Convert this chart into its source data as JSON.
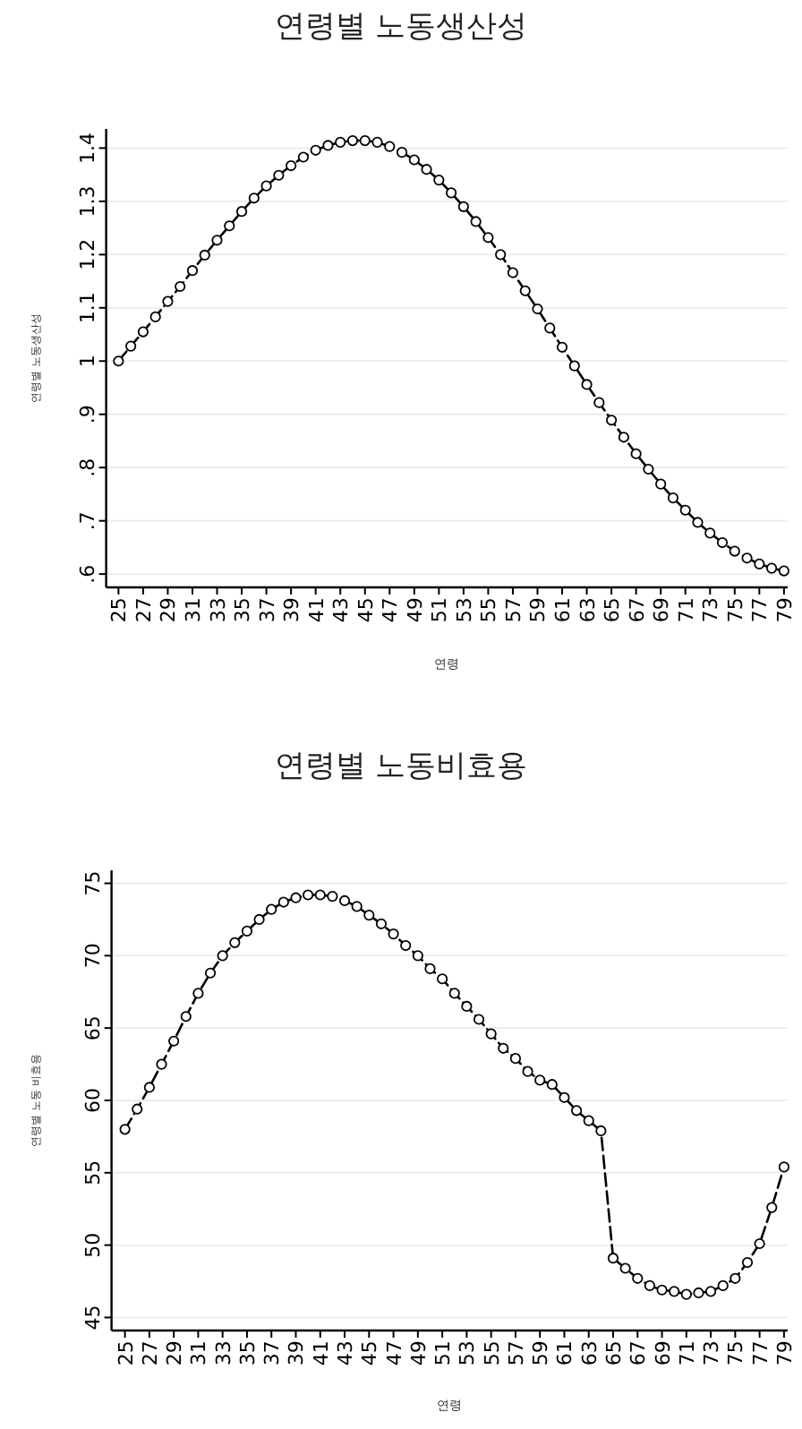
{
  "chart_data": [
    {
      "type": "line",
      "title": "연령별 노동생산성",
      "xlabel": "연령",
      "ylabel": "연령별 노동생산성",
      "grid": "y",
      "marker": "circle",
      "line_style": "dashed",
      "x": [
        25,
        26,
        27,
        28,
        29,
        30,
        31,
        32,
        33,
        34,
        35,
        36,
        37,
        38,
        39,
        40,
        41,
        42,
        43,
        44,
        45,
        46,
        47,
        48,
        49,
        50,
        51,
        52,
        53,
        54,
        55,
        56,
        57,
        58,
        59,
        60,
        61,
        62,
        63,
        64,
        65,
        66,
        67,
        68,
        69,
        70,
        71,
        72,
        73,
        74,
        75,
        76,
        77,
        78,
        79
      ],
      "series": [
        {
          "color": "#000000",
          "values": [
            1.0,
            1.028,
            1.055,
            1.083,
            1.112,
            1.14,
            1.17,
            1.199,
            1.227,
            1.254,
            1.281,
            1.306,
            1.329,
            1.349,
            1.367,
            1.383,
            1.396,
            1.405,
            1.411,
            1.414,
            1.414,
            1.411,
            1.403,
            1.392,
            1.378,
            1.36,
            1.34,
            1.316,
            1.29,
            1.262,
            1.232,
            1.2,
            1.166,
            1.132,
            1.098,
            1.062,
            1.026,
            0.991,
            0.956,
            0.922,
            0.889,
            0.857,
            0.826,
            0.797,
            0.769,
            0.743,
            0.72,
            0.697,
            0.677,
            0.659,
            0.643,
            0.63,
            0.619,
            0.611,
            0.606
          ]
        }
      ],
      "xlim": [
        24,
        79.3
      ],
      "ylim": [
        0.575,
        1.436
      ],
      "xticks": [
        25,
        27,
        29,
        31,
        33,
        35,
        37,
        39,
        41,
        43,
        45,
        47,
        49,
        51,
        53,
        55,
        57,
        59,
        61,
        63,
        65,
        67,
        69,
        71,
        73,
        75,
        77,
        79
      ],
      "yticks": [
        {
          "value": 0.6,
          "label": ".6"
        },
        {
          "value": 0.7,
          "label": ".7"
        },
        {
          "value": 0.8,
          "label": ".8"
        },
        {
          "value": 0.9,
          "label": ".9"
        },
        1,
        1.1,
        1.2,
        1.3,
        1.4
      ]
    },
    {
      "type": "line",
      "title": "연령별 노동비효용",
      "xlabel": "연령",
      "ylabel": "연령별 노동 비효용",
      "grid": "y",
      "marker": "circle",
      "line_style": "dashed",
      "x": [
        25,
        26,
        27,
        28,
        29,
        30,
        31,
        32,
        33,
        34,
        35,
        36,
        37,
        38,
        39,
        40,
        41,
        42,
        43,
        44,
        45,
        46,
        47,
        48,
        49,
        50,
        51,
        52,
        53,
        54,
        55,
        56,
        57,
        58,
        59,
        60,
        61,
        62,
        63,
        64,
        65,
        66,
        67,
        68,
        69,
        70,
        71,
        72,
        73,
        74,
        75,
        76,
        77,
        78,
        79
      ],
      "series": [
        {
          "color": "#000000",
          "values": [
            58.0,
            59.4,
            60.9,
            62.5,
            64.1,
            65.8,
            67.4,
            68.8,
            70.0,
            70.9,
            71.7,
            72.5,
            73.2,
            73.7,
            74.0,
            74.2,
            74.2,
            74.1,
            73.8,
            73.4,
            72.8,
            72.2,
            71.5,
            70.7,
            70.0,
            69.1,
            68.4,
            67.4,
            66.5,
            65.6,
            64.6,
            63.6,
            62.9,
            62.0,
            61.4,
            61.1,
            60.2,
            59.3,
            58.6,
            57.9,
            49.1,
            48.4,
            47.7,
            47.2,
            46.9,
            46.8,
            46.6,
            46.7,
            46.8,
            47.2,
            47.7,
            48.8,
            50.1,
            52.6,
            55.4
          ]
        }
      ],
      "xlim": [
        23.9,
        79.3
      ],
      "ylim": [
        44.1,
        75.9
      ],
      "xticks": [
        25,
        27,
        29,
        31,
        33,
        35,
        37,
        39,
        41,
        43,
        45,
        47,
        49,
        51,
        53,
        55,
        57,
        59,
        61,
        63,
        65,
        67,
        69,
        71,
        73,
        75,
        77,
        79
      ],
      "yticks": [
        45,
        50,
        55,
        60,
        65,
        70,
        75
      ]
    }
  ]
}
